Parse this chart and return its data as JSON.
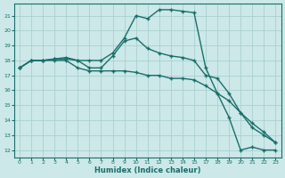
{
  "xlabel": "Humidex (Indice chaleur)",
  "background_color": "#cce8e8",
  "grid_color": "#aacfcf",
  "line_color": "#1a6e6a",
  "xlim": [
    -0.5,
    23.5
  ],
  "ylim": [
    11.5,
    21.8
  ],
  "yticks": [
    12,
    13,
    14,
    15,
    16,
    17,
    18,
    19,
    20,
    21
  ],
  "xtick_labels": [
    "0",
    "1",
    "2",
    "3",
    "4",
    "5",
    "6",
    "7",
    "8",
    "9",
    "1011",
    "1213",
    "1415",
    "  1718",
    "1920",
    "2122",
    "23"
  ],
  "lines": [
    {
      "x": [
        0,
        1,
        2,
        3,
        4,
        5,
        6,
        7,
        8,
        9,
        10,
        11,
        12,
        13,
        14,
        15,
        17,
        18,
        19,
        20,
        21,
        22,
        23
      ],
      "y": [
        17.5,
        18.0,
        18.0,
        18.1,
        18.1,
        18.0,
        18.0,
        18.0,
        18.5,
        19.5,
        21.0,
        20.8,
        21.4,
        21.4,
        21.3,
        21.2,
        17.5,
        15.8,
        14.2,
        12.0,
        12.2,
        12.0,
        12.0
      ]
    },
    {
      "x": [
        0,
        1,
        2,
        3,
        4,
        5,
        6,
        7,
        8,
        9,
        10,
        11,
        12,
        13,
        14,
        15,
        17,
        18,
        19,
        20,
        21,
        22,
        23
      ],
      "y": [
        17.5,
        18.0,
        18.0,
        18.1,
        18.2,
        18.0,
        17.5,
        17.5,
        18.3,
        19.3,
        19.5,
        18.8,
        18.5,
        18.3,
        18.2,
        18.0,
        17.0,
        16.8,
        15.8,
        14.5,
        13.5,
        13.0,
        12.5
      ]
    },
    {
      "x": [
        0,
        1,
        2,
        3,
        4,
        5,
        6,
        7,
        8,
        9,
        10,
        11,
        12,
        13,
        14,
        15,
        17,
        18,
        19,
        20,
        21,
        22,
        23
      ],
      "y": [
        17.5,
        18.0,
        18.0,
        18.0,
        18.0,
        17.5,
        17.3,
        17.3,
        17.3,
        17.3,
        17.2,
        17.0,
        17.0,
        16.8,
        16.8,
        16.7,
        16.3,
        15.8,
        15.3,
        14.5,
        13.8,
        13.2,
        12.5
      ]
    }
  ]
}
